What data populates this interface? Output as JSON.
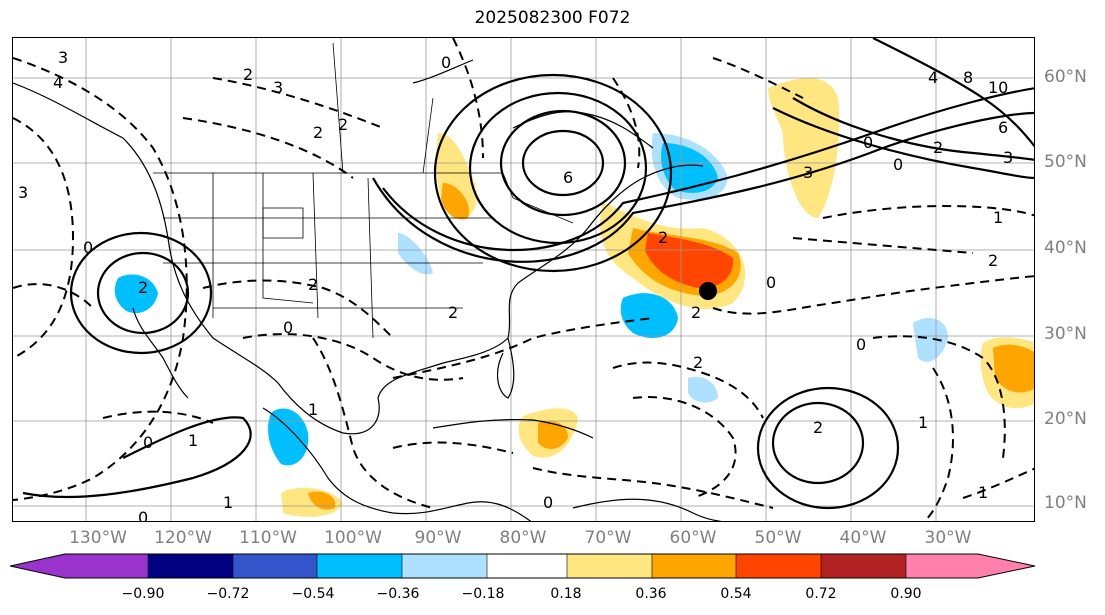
{
  "title": "2025082300 F072",
  "lat_labels": [
    "60°N",
    "50°N",
    "40°N",
    "30°N",
    "20°N",
    "10°N"
  ],
  "lon_labels": [
    "130°W",
    "120°W",
    "110°W",
    "100°W",
    "90°W",
    "80°W",
    "70°W",
    "60°W",
    "50°W",
    "40°W",
    "30°W"
  ],
  "colorbar": {
    "ticks": [
      "−0.90",
      "−0.72",
      "−0.54",
      "−0.36",
      "−0.18",
      "0.18",
      "0.36",
      "0.54",
      "0.72",
      "0.90"
    ],
    "colors": [
      "#9933cc",
      "#000080",
      "#3355cc",
      "#00bfff",
      "#aee0ff",
      "#ffffff",
      "#ffe680",
      "#ffa500",
      "#ff4500",
      "#b22222",
      "#ff80aa"
    ]
  },
  "contour_labels": [
    "3",
    "4",
    "2",
    "0",
    "2",
    "2",
    "3",
    "6",
    "10",
    "8",
    "4",
    "6",
    "2",
    "0",
    "3",
    "0",
    "3",
    "1",
    "2",
    "2",
    "2",
    "0",
    "3",
    "2",
    "0",
    "2",
    "0",
    "1",
    "2",
    "1",
    "0",
    "2",
    "0",
    "1",
    "0",
    "1",
    "2",
    "0",
    "1"
  ],
  "marker": {
    "name": "storm-center",
    "lon": "~58.5°W",
    "lat": "~35°N"
  }
}
